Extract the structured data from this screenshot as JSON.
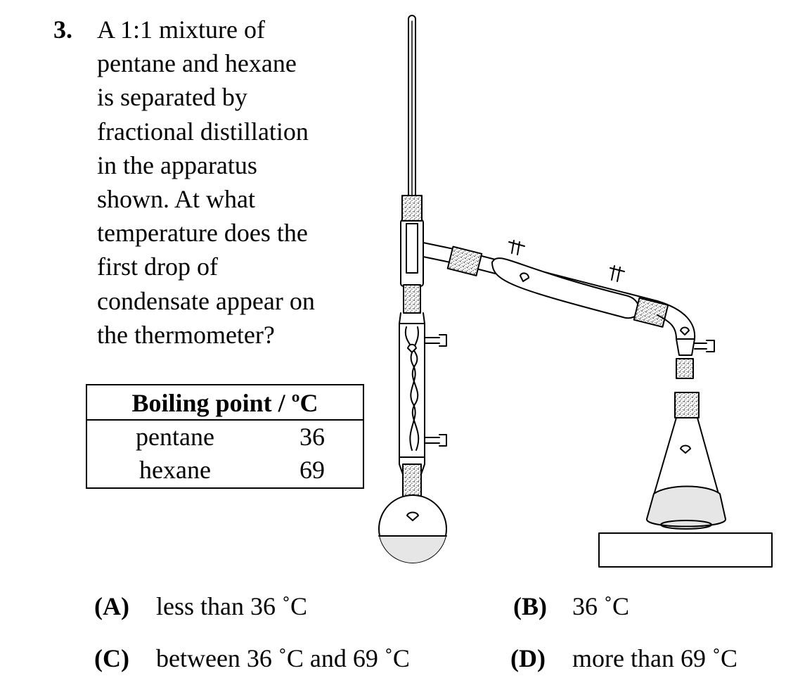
{
  "question": {
    "number": "3.",
    "lines": [
      "A 1:1 mixture of",
      "pentane and hexane",
      "is separated by",
      "fractional distillation",
      "in the apparatus",
      "shown. At what",
      "temperature does the",
      "first drop of",
      "condensate appear on",
      "the thermometer?"
    ]
  },
  "table": {
    "header": "Boiling point / ºC",
    "rows": [
      {
        "name": "pentane",
        "value": "36"
      },
      {
        "name": "hexane",
        "value": "69"
      }
    ]
  },
  "options": [
    {
      "letter": "(A)",
      "text": "less than 36 ˚C"
    },
    {
      "letter": "(B)",
      "text": "36 ˚C"
    },
    {
      "letter": "(C)",
      "text": "between 36 ˚C and 69 ˚C"
    },
    {
      "letter": "(D)",
      "text": "more than 69 ˚C"
    }
  ]
}
